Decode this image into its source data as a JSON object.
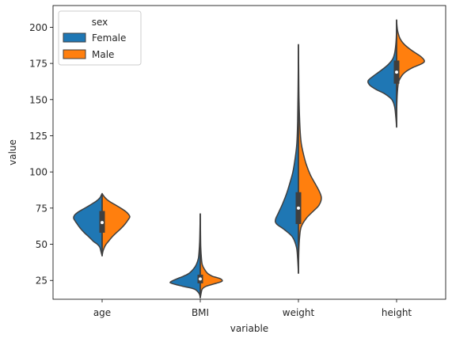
{
  "chart_data": {
    "type": "violin",
    "split": true,
    "xlabel": "variable",
    "ylabel": "value",
    "categories": [
      "age",
      "BMI",
      "weight",
      "height"
    ],
    "yticks": [
      25,
      50,
      75,
      100,
      125,
      150,
      175,
      200
    ],
    "ylim": [
      12,
      215
    ],
    "legend": {
      "title": "sex",
      "position": "top-left",
      "entries": [
        "Female",
        "Male"
      ]
    },
    "series": [
      {
        "name": "Female",
        "color": "#1f77b4"
      },
      {
        "name": "Male",
        "color": "#ff7f0e"
      }
    ],
    "violins": {
      "age": {
        "min": 42,
        "max": 85,
        "q1": 58,
        "median": 65,
        "q3": 73,
        "female": [
          [
            42,
            0
          ],
          [
            45,
            0.03
          ],
          [
            48,
            0.06
          ],
          [
            50,
            0.12
          ],
          [
            52,
            0.22
          ],
          [
            55,
            0.33
          ],
          [
            58,
            0.45
          ],
          [
            61,
            0.55
          ],
          [
            64,
            0.63
          ],
          [
            66,
            0.68
          ],
          [
            68,
            0.72
          ],
          [
            70,
            0.7
          ],
          [
            72,
            0.62
          ],
          [
            74,
            0.5
          ],
          [
            76,
            0.37
          ],
          [
            78,
            0.25
          ],
          [
            80,
            0.14
          ],
          [
            82,
            0.06
          ],
          [
            84,
            0.02
          ],
          [
            85,
            0
          ]
        ],
        "male": [
          [
            42,
            0
          ],
          [
            45,
            0.02
          ],
          [
            48,
            0.06
          ],
          [
            50,
            0.1
          ],
          [
            52,
            0.16
          ],
          [
            55,
            0.25
          ],
          [
            58,
            0.36
          ],
          [
            61,
            0.48
          ],
          [
            64,
            0.58
          ],
          [
            67,
            0.66
          ],
          [
            69,
            0.7
          ],
          [
            71,
            0.66
          ],
          [
            73,
            0.58
          ],
          [
            75,
            0.47
          ],
          [
            77,
            0.35
          ],
          [
            79,
            0.22
          ],
          [
            81,
            0.12
          ],
          [
            83,
            0.05
          ],
          [
            85,
            0
          ]
        ]
      },
      "BMI": {
        "min": 13,
        "max": 71,
        "q1": 23,
        "median": 26,
        "q3": 29,
        "female": [
          [
            13,
            0
          ],
          [
            16,
            0.03
          ],
          [
            19,
            0.15
          ],
          [
            21,
            0.45
          ],
          [
            23,
            0.72
          ],
          [
            24,
            0.75
          ],
          [
            26,
            0.6
          ],
          [
            28,
            0.42
          ],
          [
            30,
            0.28
          ],
          [
            33,
            0.17
          ],
          [
            36,
            0.1
          ],
          [
            40,
            0.05
          ],
          [
            45,
            0.03
          ],
          [
            52,
            0.015
          ],
          [
            60,
            0.008
          ],
          [
            71,
            0
          ]
        ],
        "male": [
          [
            13,
            0
          ],
          [
            16,
            0.02
          ],
          [
            19,
            0.05
          ],
          [
            21,
            0.15
          ],
          [
            23,
            0.4
          ],
          [
            24.5,
            0.55
          ],
          [
            26,
            0.52
          ],
          [
            27,
            0.42
          ],
          [
            28,
            0.3
          ],
          [
            30,
            0.18
          ],
          [
            33,
            0.1
          ],
          [
            36,
            0.05
          ],
          [
            40,
            0.03
          ],
          [
            48,
            0.012
          ],
          [
            58,
            0.006
          ],
          [
            71,
            0
          ]
        ]
      },
      "weight": {
        "min": 30,
        "max": 188,
        "q1": 64,
        "median": 75,
        "q3": 86,
        "female": [
          [
            30,
            0
          ],
          [
            40,
            0.02
          ],
          [
            48,
            0.05
          ],
          [
            55,
            0.15
          ],
          [
            60,
            0.35
          ],
          [
            64,
            0.55
          ],
          [
            67,
            0.58
          ],
          [
            72,
            0.5
          ],
          [
            78,
            0.4
          ],
          [
            85,
            0.3
          ],
          [
            92,
            0.22
          ],
          [
            100,
            0.14
          ],
          [
            110,
            0.08
          ],
          [
            120,
            0.04
          ],
          [
            135,
            0.02
          ],
          [
            160,
            0.008
          ],
          [
            188,
            0
          ]
        ],
        "male": [
          [
            30,
            0
          ],
          [
            45,
            0.01
          ],
          [
            55,
            0.03
          ],
          [
            62,
            0.07
          ],
          [
            68,
            0.2
          ],
          [
            73,
            0.38
          ],
          [
            77,
            0.52
          ],
          [
            82,
            0.58
          ],
          [
            87,
            0.52
          ],
          [
            92,
            0.42
          ],
          [
            98,
            0.3
          ],
          [
            105,
            0.2
          ],
          [
            112,
            0.13
          ],
          [
            120,
            0.07
          ],
          [
            130,
            0.04
          ],
          [
            150,
            0.015
          ],
          [
            170,
            0.007
          ],
          [
            188,
            0
          ]
        ]
      },
      "height": {
        "min": 131,
        "max": 205,
        "q1": 161,
        "median": 169,
        "q3": 177,
        "female": [
          [
            131,
            0
          ],
          [
            138,
            0.02
          ],
          [
            145,
            0.05
          ],
          [
            150,
            0.12
          ],
          [
            154,
            0.3
          ],
          [
            157,
            0.52
          ],
          [
            160,
            0.68
          ],
          [
            163,
            0.72
          ],
          [
            166,
            0.6
          ],
          [
            170,
            0.4
          ],
          [
            174,
            0.22
          ],
          [
            178,
            0.1
          ],
          [
            182,
            0.05
          ],
          [
            188,
            0.02
          ],
          [
            195,
            0.005
          ],
          [
            205,
            0
          ]
        ],
        "male": [
          [
            131,
            0
          ],
          [
            145,
            0.005
          ],
          [
            155,
            0.02
          ],
          [
            162,
            0.05
          ],
          [
            166,
            0.12
          ],
          [
            169,
            0.22
          ],
          [
            172,
            0.4
          ],
          [
            175,
            0.65
          ],
          [
            177,
            0.7
          ],
          [
            180,
            0.6
          ],
          [
            184,
            0.38
          ],
          [
            188,
            0.2
          ],
          [
            192,
            0.09
          ],
          [
            197,
            0.03
          ],
          [
            201,
            0.01
          ],
          [
            205,
            0
          ]
        ]
      }
    }
  }
}
